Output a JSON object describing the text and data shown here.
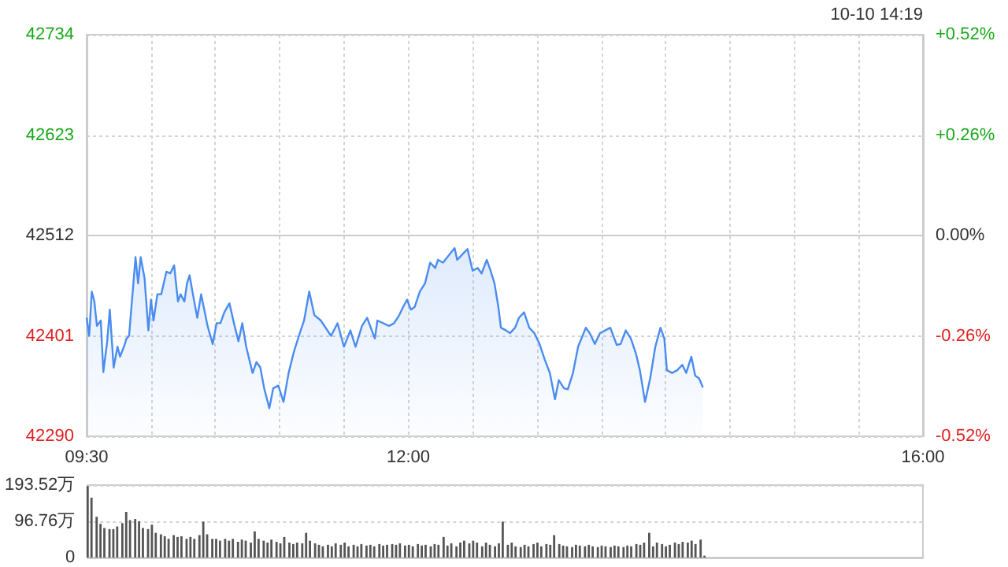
{
  "chart_data": [
    {
      "type": "area",
      "annotations": [
        "10-10 14:19"
      ],
      "x": [
        9.5,
        9.52,
        9.54,
        9.56,
        9.58,
        9.61,
        9.63,
        9.66,
        9.68,
        9.71,
        9.74,
        9.76,
        9.79,
        9.81,
        9.83,
        9.88,
        9.9,
        9.92,
        9.95,
        9.98,
        10,
        10.02,
        10.05,
        10.08,
        10.12,
        10.15,
        10.18,
        10.21,
        10.23,
        10.26,
        10.28,
        10.3,
        10.33,
        10.36,
        10.39,
        10.44,
        10.48,
        10.51,
        10.54,
        10.57,
        10.61,
        10.65,
        10.68,
        10.71,
        10.74,
        10.79,
        10.82,
        10.85,
        10.88,
        10.92,
        10.95,
        10.99,
        11.03,
        11.07,
        11.11,
        11.15,
        11.19,
        11.23,
        11.27,
        11.32,
        11.4,
        11.45,
        11.5,
        11.55,
        11.59,
        11.64,
        11.68,
        11.74,
        11.76,
        11.85,
        11.89,
        11.93,
        11.96,
        11.99,
        12.02,
        12.05,
        12.09,
        12.13,
        12.17,
        12.21,
        12.23,
        12.27,
        12.32,
        12.36,
        12.38,
        12.42,
        12.46,
        12.5,
        12.54,
        12.57,
        12.61,
        12.64,
        12.67,
        12.7,
        12.72,
        12.76,
        12.79,
        12.83,
        12.86,
        12.9,
        12.94,
        12.98,
        13.02,
        13.06,
        13.1,
        13.14,
        13.17,
        13.21,
        13.24,
        13.28,
        13.32,
        13.38,
        13.41,
        13.45,
        13.49,
        13.53,
        13.57,
        13.62,
        13.65,
        13.69,
        13.73,
        13.77,
        13.8,
        13.84,
        13.88,
        13.92,
        13.96,
        13.99,
        14.01,
        14.05,
        14.09,
        14.13,
        14.16,
        14.2,
        14.23,
        14.26,
        14.29
      ],
      "series": [
        {
          "color": "#4a8cf0",
          "values": [
            42421,
            42401,
            42450,
            42439,
            42412,
            42418,
            42361,
            42395,
            42430,
            42366,
            42389,
            42378,
            42389,
            42398,
            42401,
            42488,
            42459,
            42488,
            42465,
            42407,
            42441,
            42418,
            42447,
            42447,
            42472,
            42470,
            42479,
            42439,
            42447,
            42439,
            42459,
            42468,
            42444,
            42421,
            42447,
            42412,
            42392,
            42415,
            42415,
            42427,
            42437,
            42412,
            42395,
            42415,
            42389,
            42360,
            42372,
            42366,
            42343,
            42321,
            42343,
            42346,
            42328,
            42360,
            42383,
            42401,
            42418,
            42450,
            42424,
            42418,
            42401,
            42415,
            42389,
            42407,
            42389,
            42412,
            42421,
            42398,
            42418,
            42412,
            42415,
            42424,
            42433,
            42441,
            42430,
            42433,
            42450,
            42459,
            42482,
            42476,
            42485,
            42482,
            42491,
            42498,
            42485,
            42491,
            42497,
            42473,
            42476,
            42470,
            42485,
            42473,
            42459,
            42433,
            42410,
            42407,
            42404,
            42410,
            42421,
            42427,
            42410,
            42404,
            42392,
            42375,
            42360,
            42331,
            42352,
            42343,
            42342,
            42360,
            42389,
            42410,
            42404,
            42392,
            42404,
            42407,
            42410,
            42391,
            42392,
            42407,
            42398,
            42381,
            42363,
            42328,
            42354,
            42389,
            42410,
            42398,
            42363,
            42360,
            42363,
            42369,
            42360,
            42378,
            42357,
            42354,
            42344
          ]
        }
      ],
      "xlim": [
        9.5,
        16
      ],
      "xticks": [
        {
          "value": 9.5,
          "label": "09:30"
        },
        {
          "value": 10,
          "label": null
        },
        {
          "value": 10.5,
          "label": null
        },
        {
          "value": 11,
          "label": null
        },
        {
          "value": 11.5,
          "label": null
        },
        {
          "value": 12,
          "label": "12:00"
        },
        {
          "value": 12.5,
          "label": null
        },
        {
          "value": 13,
          "label": null
        },
        {
          "value": 13.5,
          "label": null
        },
        {
          "value": 14,
          "label": null
        },
        {
          "value": 14.5,
          "label": null
        },
        {
          "value": 15,
          "label": null
        },
        {
          "value": 15.5,
          "label": null
        },
        {
          "value": 16,
          "label": "16:00"
        }
      ],
      "ylim": [
        42290,
        42734
      ],
      "yticks": [
        42290,
        42401,
        42512,
        42623,
        42734
      ],
      "y2lim": [
        -0.52,
        0.52
      ],
      "y2ticks": [
        {
          "value": -0.52,
          "label": "-0.52%"
        },
        {
          "value": -0.26,
          "label": "-0.26%"
        },
        {
          "value": 0,
          "label": "0.00%"
        },
        {
          "value": 0.26,
          "label": "+0.26%"
        },
        {
          "value": 0.52,
          "label": "+0.52%"
        }
      ],
      "grid": true
    },
    {
      "type": "bar",
      "tick_labels": "y",
      "x": [
        9.5,
        9.53,
        9.57,
        9.6,
        9.63,
        9.67,
        9.7,
        9.73,
        9.77,
        9.8,
        9.83,
        9.87,
        9.9,
        9.93,
        9.97,
        10,
        10.03,
        10.07,
        10.1,
        10.13,
        10.17,
        10.2,
        10.23,
        10.27,
        10.3,
        10.33,
        10.37,
        10.4,
        10.43,
        10.47,
        10.5,
        10.53,
        10.57,
        10.6,
        10.63,
        10.67,
        10.7,
        10.73,
        10.77,
        10.8,
        10.83,
        10.87,
        10.9,
        10.93,
        10.97,
        11,
        11.03,
        11.07,
        11.1,
        11.13,
        11.17,
        11.2,
        11.23,
        11.27,
        11.3,
        11.33,
        11.37,
        11.4,
        11.43,
        11.47,
        11.5,
        11.53,
        11.57,
        11.6,
        11.63,
        11.67,
        11.7,
        11.73,
        11.77,
        11.8,
        11.83,
        11.87,
        11.9,
        11.93,
        11.97,
        12,
        12.03,
        12.07,
        12.1,
        12.13,
        12.17,
        12.2,
        12.23,
        12.27,
        12.3,
        12.33,
        12.37,
        12.4,
        12.43,
        12.47,
        12.5,
        12.53,
        12.57,
        12.6,
        12.63,
        12.67,
        12.7,
        12.73,
        12.77,
        12.8,
        12.83,
        12.87,
        12.9,
        12.93,
        12.97,
        13,
        13.03,
        13.07,
        13.1,
        13.13,
        13.17,
        13.2,
        13.23,
        13.27,
        13.3,
        13.33,
        13.37,
        13.4,
        13.43,
        13.47,
        13.5,
        13.53,
        13.57,
        13.6,
        13.63,
        13.67,
        13.7,
        13.73,
        13.77,
        13.8,
        13.83,
        13.87,
        13.9,
        13.93,
        13.97,
        14,
        14.03,
        14.07,
        14.1,
        14.13,
        14.17,
        14.2,
        14.23,
        14.27,
        14.3
      ],
      "series": [
        {
          "color": "#555555",
          "values": [
            191,
            160,
            109,
            90,
            79,
            76,
            76,
            83,
            92,
            122,
            100,
            103,
            97,
            79,
            76,
            88,
            66,
            62,
            57,
            50,
            60,
            55,
            57,
            50,
            55,
            50,
            60,
            96,
            62,
            50,
            50,
            45,
            50,
            45,
            50,
            42,
            48,
            45,
            40,
            70,
            50,
            45,
            40,
            48,
            42,
            38,
            55,
            40,
            36,
            40,
            38,
            66,
            45,
            38,
            34,
            30,
            34,
            30,
            38,
            34,
            40,
            30,
            34,
            30,
            36,
            32,
            34,
            30,
            36,
            32,
            34,
            36,
            34,
            38,
            32,
            34,
            30,
            36,
            32,
            34,
            30,
            36,
            34,
            55,
            32,
            38,
            30,
            40,
            45,
            38,
            45,
            40,
            30,
            40,
            34,
            30,
            38,
            96,
            34,
            40,
            30,
            28,
            34,
            30,
            36,
            40,
            30,
            36,
            34,
            60,
            36,
            32,
            30,
            28,
            34,
            32,
            30,
            34,
            30,
            28,
            32,
            30,
            28,
            32,
            30,
            28,
            32,
            30,
            36,
            34,
            40,
            66,
            30,
            40,
            36,
            30,
            34,
            40,
            36,
            42,
            40,
            45,
            36,
            48,
            5
          ]
        }
      ],
      "xlim": [
        9.5,
        16
      ],
      "ylim": [
        0,
        193.52
      ],
      "yticks": [
        0,
        {
          "value": 96.76,
          "label": "96.76万"
        },
        {
          "value": 193.52,
          "label": "193.52万"
        }
      ],
      "grid": "y"
    }
  ]
}
